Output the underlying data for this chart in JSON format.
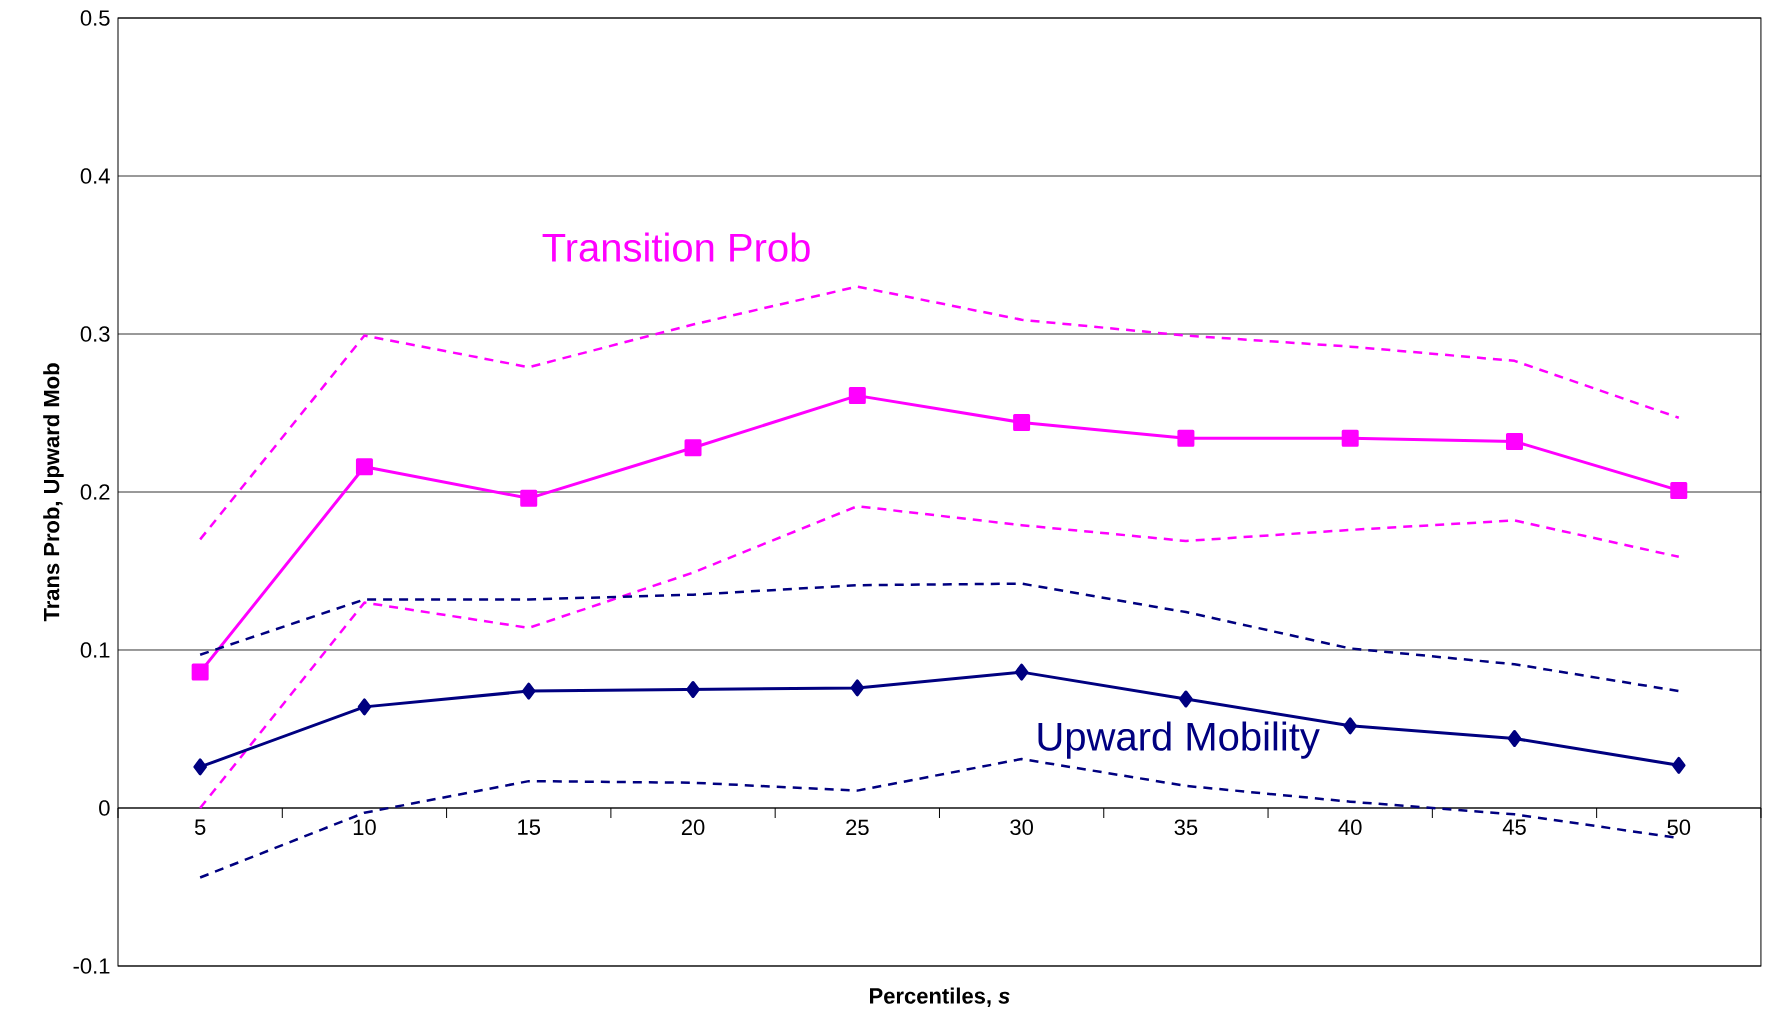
{
  "chart_data": {
    "type": "line",
    "xlabel": "Percentiles, *s*",
    "ylabel": "Trans Prob, Upward Mob",
    "categories": [
      "5",
      "10",
      "15",
      "20",
      "25",
      "30",
      "35",
      "40",
      "45",
      "50"
    ],
    "series": [
      {
        "name": "Transition Prob",
        "color": "#ff00ff",
        "marker": "square",
        "line_style": "solid",
        "values": [
          0.086,
          0.216,
          0.196,
          0.228,
          0.261,
          0.244,
          0.234,
          0.234,
          0.232,
          0.201
        ]
      },
      {
        "color": "#ff00ff",
        "marker": "none",
        "line_style": "dashed",
        "values": [
          0.17,
          0.299,
          0.279,
          0.306,
          0.33,
          0.309,
          0.299,
          0.292,
          0.283,
          0.247
        ]
      },
      {
        "color": "#ff00ff",
        "marker": "none",
        "line_style": "dashed",
        "values": [
          0.0,
          0.13,
          0.114,
          0.149,
          0.191,
          0.179,
          0.169,
          0.176,
          0.182,
          0.159
        ]
      },
      {
        "name": "Upward  Mobility",
        "color": "#000080",
        "marker": "diamond",
        "line_style": "solid",
        "values": [
          0.026,
          0.064,
          0.074,
          0.075,
          0.076,
          0.086,
          0.069,
          0.052,
          0.044,
          0.027
        ]
      },
      {
        "color": "#000080",
        "marker": "none",
        "line_style": "dashed",
        "values": [
          0.097,
          0.132,
          0.132,
          0.135,
          0.141,
          0.142,
          0.124,
          0.101,
          0.091,
          0.074
        ]
      },
      {
        "color": "#000080",
        "marker": "none",
        "line_style": "dashed",
        "values": [
          -0.044,
          -0.003,
          0.017,
          0.016,
          0.011,
          0.031,
          0.014,
          0.004,
          -0.004,
          -0.019
        ]
      }
    ],
    "ylim": [
      -0.1,
      0.5
    ],
    "yticks": [
      -0.1,
      0,
      0.1,
      0.2,
      0.3,
      0.4,
      0.5
    ],
    "grid": "y",
    "legend": false
  }
}
